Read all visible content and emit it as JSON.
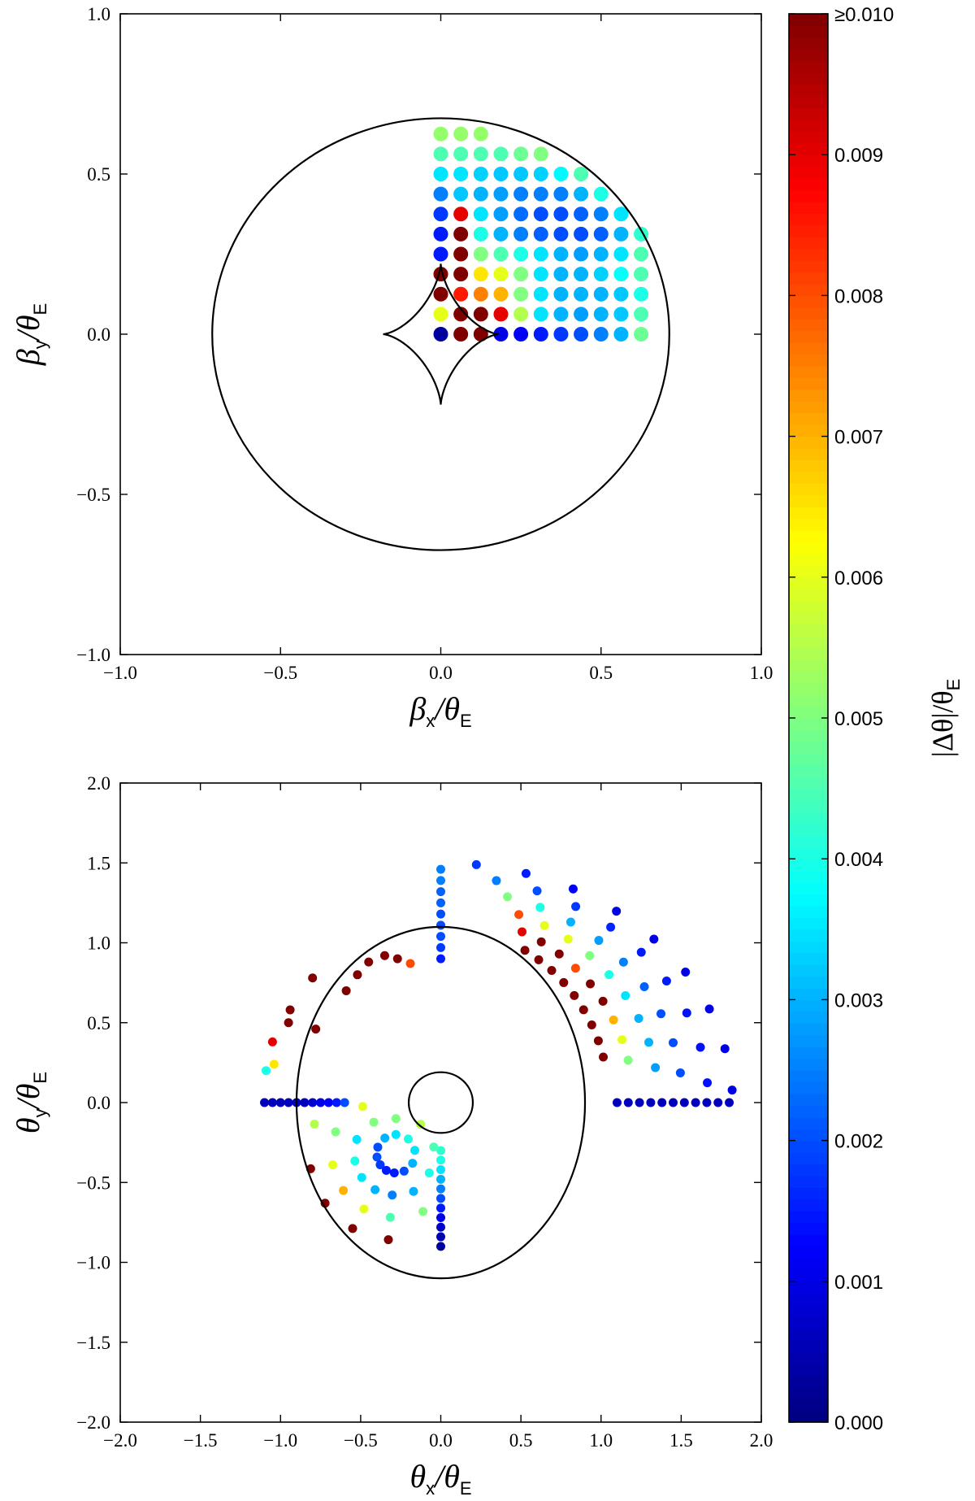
{
  "chart_data": [
    {
      "type": "scatter",
      "xlabel": [
        "β",
        "x",
        "/θ",
        "E"
      ],
      "ylabel": [
        "β",
        "y",
        "/θ",
        "E"
      ],
      "xlim": [
        -1,
        1
      ],
      "ylim": [
        -1,
        1
      ],
      "xticks": [
        {
          "value": -1,
          "label": "−1.0"
        },
        {
          "value": -0.5,
          "label": "−0.5"
        },
        {
          "value": 0,
          "label": "0.0"
        },
        0.5,
        {
          "value": 1,
          "label": "1.0"
        }
      ],
      "yticks": [
        {
          "value": -1,
          "label": "−1.0"
        },
        {
          "value": -0.5,
          "label": "−0.5"
        },
        {
          "value": 0,
          "label": "0.0"
        },
        0.5,
        {
          "value": 1,
          "label": "1.0"
        }
      ],
      "x": [
        0,
        0.0625,
        0.125,
        0.1875,
        0.25,
        0.3125,
        0.375,
        0.4375,
        0.5,
        0.5625,
        0.625,
        0,
        0.0625,
        0.125,
        0.1875,
        0.25,
        0.3125,
        0.375,
        0.4375,
        0.5,
        0.5625,
        0.625,
        0,
        0.0625,
        0.125,
        0.1875,
        0.25,
        0.3125,
        0.375,
        0.4375,
        0.5,
        0.5625,
        0.625,
        0,
        0.0625,
        0.125,
        0.1875,
        0.25,
        0.3125,
        0.375,
        0.4375,
        0.5,
        0.5625,
        0.625,
        0,
        0.0625,
        0.125,
        0.1875,
        0.25,
        0.3125,
        0.375,
        0.4375,
        0.5,
        0.5625,
        0.625,
        0,
        0.0625,
        0.125,
        0.1875,
        0.25,
        0.3125,
        0.375,
        0.4375,
        0.5,
        0.5625,
        0.625,
        0,
        0.0625,
        0.125,
        0.1875,
        0.25,
        0.3125,
        0.375,
        0.4375,
        0.5,
        0.5625,
        0,
        0.0625,
        0.125,
        0.1875,
        0.25,
        0.3125,
        0.375,
        0.4375,
        0.5,
        0,
        0.0625,
        0.125,
        0.1875,
        0.25,
        0.3125,
        0.375,
        0.4375,
        0,
        0.0625,
        0.125,
        0.1875,
        0.25,
        0.3125,
        0,
        0.0625,
        0.125
      ],
      "y": [
        0,
        0,
        0,
        0,
        0,
        0,
        0,
        0,
        0,
        0,
        0,
        0.0625,
        0.0625,
        0.0625,
        0.0625,
        0.0625,
        0.0625,
        0.0625,
        0.0625,
        0.0625,
        0.0625,
        0.0625,
        0.125,
        0.125,
        0.125,
        0.125,
        0.125,
        0.125,
        0.125,
        0.125,
        0.125,
        0.125,
        0.125,
        0.1875,
        0.1875,
        0.1875,
        0.1875,
        0.1875,
        0.1875,
        0.1875,
        0.1875,
        0.1875,
        0.1875,
        0.1875,
        0.25,
        0.25,
        0.25,
        0.25,
        0.25,
        0.25,
        0.25,
        0.25,
        0.25,
        0.25,
        0.25,
        0.3125,
        0.3125,
        0.3125,
        0.3125,
        0.3125,
        0.3125,
        0.3125,
        0.3125,
        0.3125,
        0.3125,
        0.3125,
        0.375,
        0.375,
        0.375,
        0.375,
        0.375,
        0.375,
        0.375,
        0.375,
        0.375,
        0.375,
        0.4375,
        0.4375,
        0.4375,
        0.4375,
        0.4375,
        0.4375,
        0.4375,
        0.4375,
        0.4375,
        0.5,
        0.5,
        0.5,
        0.5,
        0.5,
        0.5,
        0.5,
        0.5,
        0.5625,
        0.5625,
        0.5625,
        0.5625,
        0.5625,
        0.5625,
        0.625,
        0.625,
        0.625
      ],
      "values": [
        0.0003,
        0.011,
        0.011,
        0.001,
        0.0012,
        0.0015,
        0.0018,
        0.002,
        0.0025,
        0.003,
        0.0048,
        0.006,
        0.011,
        0.011,
        0.009,
        0.0055,
        0.0035,
        0.003,
        0.0028,
        0.003,
        0.0032,
        0.0045,
        0.011,
        0.0085,
        0.0075,
        0.007,
        0.005,
        0.0035,
        0.003,
        0.003,
        0.003,
        0.0032,
        0.004,
        0.011,
        0.011,
        0.0065,
        0.006,
        0.005,
        0.0035,
        0.003,
        0.003,
        0.0033,
        0.0038,
        0.0045,
        0.0015,
        0.011,
        0.005,
        0.0045,
        0.004,
        0.0035,
        0.003,
        0.0028,
        0.003,
        0.0035,
        0.0045,
        0.0015,
        0.011,
        0.004,
        0.003,
        0.0025,
        0.0022,
        0.002,
        0.002,
        0.0022,
        0.003,
        0.0042,
        0.0018,
        0.009,
        0.0035,
        0.0028,
        0.0023,
        0.002,
        0.002,
        0.0022,
        0.0025,
        0.0035,
        0.0025,
        0.0032,
        0.003,
        0.0028,
        0.0025,
        0.0025,
        0.0025,
        0.003,
        0.004,
        0.0035,
        0.0035,
        0.0033,
        0.0032,
        0.0032,
        0.0033,
        0.0037,
        0.0045,
        0.0045,
        0.0045,
        0.0045,
        0.0045,
        0.0048,
        0.005,
        0.0052,
        0.0052,
        0.0052
      ]
    },
    {
      "type": "scatter",
      "xlabel": [
        "θ",
        "x",
        "/θ",
        "E"
      ],
      "ylabel": [
        "θ",
        "y",
        "/θ",
        "E"
      ],
      "xlim": [
        -2,
        2
      ],
      "ylim": [
        -2,
        2
      ],
      "xticks": [
        {
          "value": -2,
          "label": "−2.0"
        },
        {
          "value": -1.5,
          "label": "−1.5"
        },
        {
          "value": -1,
          "label": "−1.0"
        },
        {
          "value": -0.5,
          "label": "−0.5"
        },
        {
          "value": 0,
          "label": "0.0"
        },
        0.5,
        {
          "value": 1,
          "label": "1.0"
        },
        1.5,
        {
          "value": 2,
          "label": "2.0"
        }
      ],
      "yticks": [
        {
          "value": -2,
          "label": "−2.0"
        },
        {
          "value": -1.5,
          "label": "−1.5"
        },
        {
          "value": -1,
          "label": "−1.0"
        },
        {
          "value": -0.5,
          "label": "−0.5"
        },
        {
          "value": 0,
          "label": "0.0"
        },
        0.5,
        {
          "value": 1,
          "label": "1.0"
        },
        1.5,
        {
          "value": 2,
          "label": "2.0"
        }
      ],
      "x": [
        0.525,
        0.611,
        0.692,
        0.767,
        0.833,
        0.891,
        0.942,
        0.983,
        1.014,
        0.507,
        0.627,
        0.739,
        0.841,
        0.933,
        1.012,
        1.078,
        1.131,
        1.169,
        0.487,
        0.647,
        0.795,
        0.929,
        1.05,
        1.152,
        1.235,
        1.298,
        1.339,
        0.416,
        0.62,
        0.811,
        0.986,
        1.14,
        1.27,
        1.374,
        1.45,
        1.495,
        0.347,
        0.601,
        0.842,
        1.06,
        1.251,
        1.409,
        1.535,
        1.62,
        1.663,
        0.222,
        0.532,
        0.826,
        1.096,
        1.33,
        1.527,
        1.676,
        1.773,
        1.818,
        -1.09,
        -1.04,
        -1.05,
        -0.95,
        -0.94,
        -0.78,
        -0.8,
        -0.59,
        -0.52,
        -0.45,
        -0.35,
        -0.27,
        -0.19,
        -1.1,
        -1.05,
        -1,
        -0.95,
        -0.9,
        -0.85,
        -0.8,
        -0.75,
        -0.7,
        -0.65,
        -0.6,
        1.1,
        1.17,
        1.24,
        1.31,
        1.38,
        1.45,
        1.52,
        1.59,
        1.66,
        1.73,
        1.8,
        0,
        0,
        0,
        0,
        0,
        0,
        0,
        0,
        0,
        0,
        0,
        0,
        0,
        0,
        0,
        0,
        0,
        0,
        0,
        0,
        -0.28,
        -0.28,
        -0.349,
        -0.418,
        -0.487,
        -0.393,
        -0.524,
        -0.656,
        -0.788,
        -0.398,
        -0.536,
        -0.674,
        -0.812,
        -0.378,
        -0.493,
        -0.608,
        -0.722,
        -0.34,
        -0.41,
        -0.48,
        -0.55,
        -0.29,
        -0.303,
        -0.315,
        -0.327,
        -0.229,
        -0.17,
        -0.111,
        -0.176,
        -0.072,
        -0.162,
        -0.044,
        -0.203,
        -0.126
      ],
      "y": [
        0.953,
        0.894,
        0.827,
        0.751,
        0.67,
        0.581,
        0.486,
        0.387,
        0.285,
        1.069,
        1.006,
        0.93,
        0.841,
        0.743,
        0.634,
        0.517,
        0.394,
        0.265,
        1.177,
        1.108,
        1.023,
        0.92,
        0.801,
        0.669,
        0.527,
        0.377,
        0.219,
        1.288,
        1.222,
        1.13,
        1.015,
        0.879,
        0.725,
        0.556,
        0.375,
        0.186,
        1.389,
        1.325,
        1.227,
        1.098,
        0.941,
        0.761,
        0.561,
        0.346,
        0.124,
        1.489,
        1.434,
        1.337,
        1.198,
        1.023,
        0.817,
        0.586,
        0.337,
        0.078,
        0.2,
        0.24,
        0.38,
        0.5,
        0.58,
        0.46,
        0.78,
        0.7,
        0.8,
        0.88,
        0.92,
        0.9,
        0.87,
        0,
        0,
        0,
        0,
        0,
        0,
        0,
        0,
        0,
        0,
        0,
        0,
        0,
        0,
        0,
        0,
        0,
        0,
        0,
        0,
        0,
        0,
        0.9,
        0.97,
        1.04,
        1.11,
        1.18,
        1.25,
        1.32,
        1.39,
        1.46,
        -0.3,
        -0.36,
        -0.42,
        -0.48,
        -0.54,
        -0.6,
        -0.66,
        -0.72,
        -0.78,
        -0.84,
        -0.9,
        -0.2,
        -0.1,
        -0.222,
        -0.123,
        -0.025,
        -0.279,
        -0.231,
        -0.183,
        -0.135,
        -0.341,
        -0.365,
        -0.39,
        -0.414,
        -0.389,
        -0.469,
        -0.55,
        -0.63,
        -0.424,
        -0.545,
        -0.666,
        -0.788,
        -0.44,
        -0.579,
        -0.718,
        -0.858,
        -0.429,
        -0.556,
        -0.682,
        -0.38,
        -0.44,
        -0.299,
        -0.278,
        -0.228,
        -0.136
      ],
      "values": [
        0.011,
        0.011,
        0.011,
        0.011,
        0.011,
        0.011,
        0.011,
        0.011,
        0.011,
        0.009,
        0.011,
        0.011,
        0.008,
        0.011,
        0.011,
        0.007,
        0.006,
        0.005,
        0.008,
        0.006,
        0.006,
        0.005,
        0.004,
        0.0035,
        0.003,
        0.003,
        0.0028,
        0.005,
        0.004,
        0.003,
        0.0028,
        0.0025,
        0.0022,
        0.002,
        0.002,
        0.002,
        0.0025,
        0.002,
        0.0018,
        0.0016,
        0.0015,
        0.0015,
        0.0014,
        0.0014,
        0.0014,
        0.0018,
        0.0015,
        0.0012,
        0.001,
        0.001,
        0.001,
        0.001,
        0.001,
        0.001,
        0.004,
        0.0065,
        0.009,
        0.011,
        0.011,
        0.011,
        0.011,
        0.011,
        0.011,
        0.011,
        0.011,
        0.011,
        0.008,
        0.0006,
        0.0006,
        0.0006,
        0.0006,
        0.0006,
        0.0006,
        0.0008,
        0.001,
        0.0012,
        0.0015,
        0.002,
        0.0006,
        0.0006,
        0.0006,
        0.0006,
        0.0006,
        0.0006,
        0.0006,
        0.0006,
        0.0006,
        0.0006,
        0.0006,
        0.0015,
        0.0018,
        0.002,
        0.002,
        0.002,
        0.0022,
        0.0022,
        0.0025,
        0.0025,
        0.0042,
        0.004,
        0.0035,
        0.003,
        0.0025,
        0.002,
        0.0015,
        0.001,
        0.0007,
        0.0005,
        0.0003,
        0.0035,
        0.005,
        0.003,
        0.005,
        0.006,
        0.002,
        0.0035,
        0.005,
        0.0055,
        0.002,
        0.004,
        0.006,
        0.011,
        0.0018,
        0.0035,
        0.007,
        0.011,
        0.0015,
        0.003,
        0.006,
        0.011,
        0.0015,
        0.0025,
        0.0045,
        0.011,
        0.002,
        0.003,
        0.005,
        0.003,
        0.004,
        0.0035,
        0.0045,
        0.004,
        0.0055
      ]
    }
  ],
  "colorbar": {
    "colormap": "jet",
    "label": [
      "|Δθ|/θ",
      "E"
    ],
    "lim": [
      0,
      0.01
    ],
    "ticks": [
      {
        "value": 0,
        "label": "0.000"
      },
      {
        "value": 0.001,
        "label": "0.001"
      },
      {
        "value": 0.002,
        "label": "0.002"
      },
      {
        "value": 0.003,
        "label": "0.003"
      },
      {
        "value": 0.004,
        "label": "0.004"
      },
      {
        "value": 0.005,
        "label": "0.005"
      },
      {
        "value": 0.006,
        "label": "0.006"
      },
      {
        "value": 0.007,
        "label": "0.007"
      },
      {
        "value": 0.008,
        "label": "0.008"
      },
      {
        "value": 0.009,
        "label": "0.009"
      },
      {
        "value": 0.01,
        "label": "≥0.010"
      }
    ]
  }
}
